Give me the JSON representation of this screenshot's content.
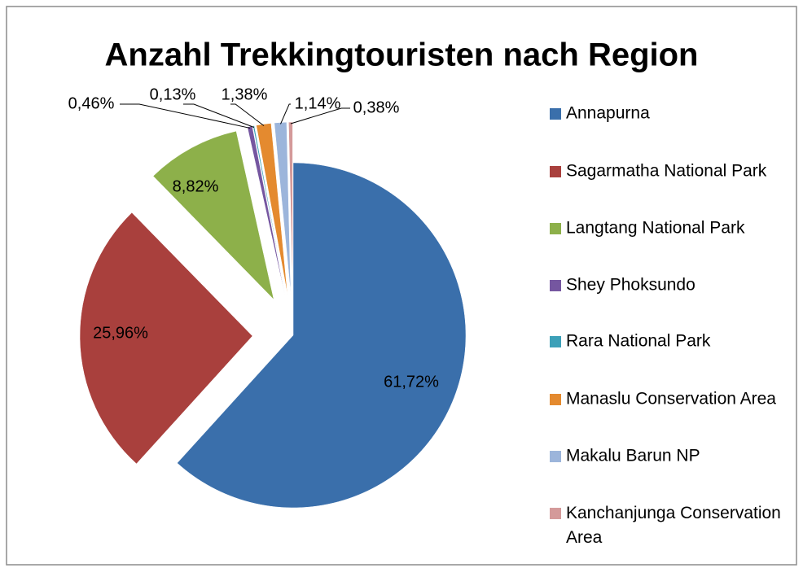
{
  "chart_data": {
    "type": "pie",
    "title": "Anzahl Trekkingtouristen nach Region",
    "categories": [
      "Annapurna",
      "Sagarmatha National Park",
      "Langtang National Park",
      "Shey Phoksundo",
      "Rara National Park",
      "Manaslu Conservation Area",
      "Makalu Barun NP",
      "Kanchanjunga Conservation Area"
    ],
    "values": [
      61.72,
      25.96,
      8.82,
      0.46,
      0.13,
      1.38,
      1.14,
      0.38
    ],
    "value_labels": [
      "61,72%",
      "25,96%",
      "8,82%",
      "0,46%",
      "0,13%",
      "1,38%",
      "1,14%",
      "0,38%"
    ],
    "colors": [
      "#3a6fab",
      "#a9403d",
      "#8db04a",
      "#7556a0",
      "#3ca0b8",
      "#e48a2f",
      "#9cb5db",
      "#d49a9a"
    ],
    "legend": "right"
  }
}
